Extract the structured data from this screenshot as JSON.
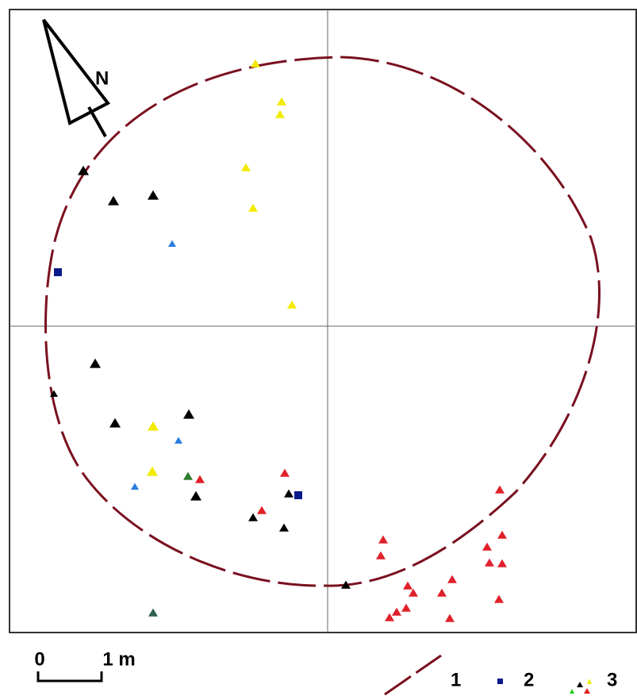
{
  "north_label": "N",
  "scale": {
    "start": "0",
    "end": "1 m"
  },
  "legend": [
    {
      "label": "1"
    },
    {
      "label": "2"
    },
    {
      "label": "3"
    }
  ]
}
